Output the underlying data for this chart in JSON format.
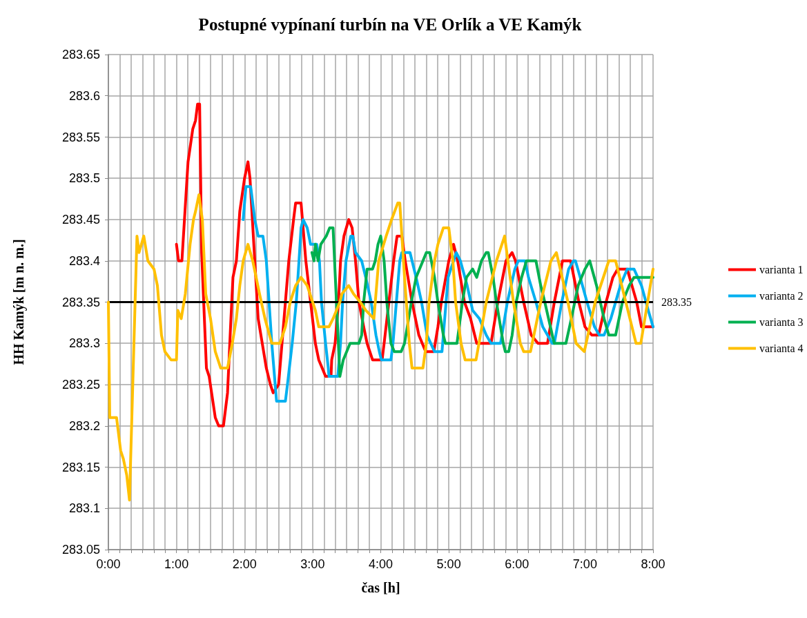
{
  "chart_data": {
    "type": "line",
    "title": "Postupné vypínaní turbín na VE Orlík a VE Kamýk",
    "xlabel": "čas [h]",
    "ylabel": "HH Kamýk [m n. m.]",
    "xlim": [
      0,
      8
    ],
    "ylim": [
      283.05,
      283.65
    ],
    "xticks": [
      {
        "value": 0,
        "label": "0:00"
      },
      {
        "value": 0.1667,
        "label": null
      },
      {
        "value": 0.3333,
        "label": null
      },
      {
        "value": 0.5,
        "label": null
      },
      {
        "value": 0.6667,
        "label": null
      },
      {
        "value": 0.8333,
        "label": null
      },
      {
        "value": 1,
        "label": "1:00"
      },
      {
        "value": 1.1667,
        "label": null
      },
      {
        "value": 1.3333,
        "label": null
      },
      {
        "value": 1.5,
        "label": null
      },
      {
        "value": 1.6667,
        "label": null
      },
      {
        "value": 1.8333,
        "label": null
      },
      {
        "value": 2,
        "label": "2:00"
      },
      {
        "value": 2.1667,
        "label": null
      },
      {
        "value": 2.3333,
        "label": null
      },
      {
        "value": 2.5,
        "label": null
      },
      {
        "value": 2.6667,
        "label": null
      },
      {
        "value": 2.8333,
        "label": null
      },
      {
        "value": 3,
        "label": "3:00"
      },
      {
        "value": 3.1667,
        "label": null
      },
      {
        "value": 3.3333,
        "label": null
      },
      {
        "value": 3.5,
        "label": null
      },
      {
        "value": 3.6667,
        "label": null
      },
      {
        "value": 3.8333,
        "label": null
      },
      {
        "value": 4,
        "label": "4:00"
      },
      {
        "value": 4.1667,
        "label": null
      },
      {
        "value": 4.3333,
        "label": null
      },
      {
        "value": 4.5,
        "label": null
      },
      {
        "value": 4.6667,
        "label": null
      },
      {
        "value": 4.8333,
        "label": null
      },
      {
        "value": 5,
        "label": "5:00"
      },
      {
        "value": 5.1667,
        "label": null
      },
      {
        "value": 5.3333,
        "label": null
      },
      {
        "value": 5.5,
        "label": null
      },
      {
        "value": 5.6667,
        "label": null
      },
      {
        "value": 5.8333,
        "label": null
      },
      {
        "value": 6,
        "label": "6:00"
      },
      {
        "value": 6.1667,
        "label": null
      },
      {
        "value": 6.3333,
        "label": null
      },
      {
        "value": 6.5,
        "label": null
      },
      {
        "value": 6.6667,
        "label": null
      },
      {
        "value": 6.8333,
        "label": null
      },
      {
        "value": 7,
        "label": "7:00"
      },
      {
        "value": 7.1667,
        "label": null
      },
      {
        "value": 7.3333,
        "label": null
      },
      {
        "value": 7.5,
        "label": null
      },
      {
        "value": 7.6667,
        "label": null
      },
      {
        "value": 7.8333,
        "label": null
      },
      {
        "value": 8,
        "label": "8:00"
      }
    ],
    "yticks": [
      283.05,
      283.1,
      283.15,
      283.2,
      283.25,
      283.3,
      283.35,
      283.4,
      283.45,
      283.5,
      283.55,
      283.6,
      283.65
    ],
    "grid": true,
    "legend": "right",
    "marker": "none",
    "line_style": "solid",
    "ref_lines": [
      {
        "axis": "y",
        "value": 283.35,
        "label": "283.35",
        "color": "#000000"
      }
    ],
    "series": [
      {
        "name": "varianta 1",
        "color": "#ff0000",
        "x": [
          1.0,
          1.03,
          1.08,
          1.17,
          1.24,
          1.28,
          1.31,
          1.34,
          1.37,
          1.44,
          1.48,
          1.57,
          1.62,
          1.69,
          1.75,
          1.8,
          1.83,
          1.88,
          1.93,
          2.0,
          2.05,
          2.08,
          2.15,
          2.2,
          2.32,
          2.38,
          2.42,
          2.5,
          2.55,
          2.6,
          2.65,
          2.72,
          2.75,
          2.83,
          2.9,
          2.97,
          3.04,
          3.09,
          3.14,
          3.19,
          3.27,
          3.28,
          3.33,
          3.38,
          3.41,
          3.46,
          3.53,
          3.58,
          3.63,
          3.68,
          3.75,
          3.8,
          3.88,
          4.02,
          4.05,
          4.12,
          4.19,
          4.24,
          4.31,
          4.36,
          4.46,
          4.56,
          4.66,
          4.78,
          4.84,
          4.89,
          5.0,
          5.07,
          5.13,
          5.23,
          5.32,
          5.41,
          5.62,
          5.72,
          5.84,
          5.93,
          5.98,
          6.1,
          6.21,
          6.31,
          6.45,
          6.55,
          6.67,
          6.79,
          6.91,
          7.0,
          7.1,
          7.2,
          7.31,
          7.41,
          7.48,
          7.62,
          7.76,
          7.83,
          8.0
        ],
        "values": [
          283.42,
          283.4,
          283.4,
          283.52,
          283.56,
          283.57,
          283.59,
          283.59,
          283.41,
          283.27,
          283.26,
          283.21,
          283.2,
          283.2,
          283.24,
          283.33,
          283.38,
          283.4,
          283.46,
          283.5,
          283.52,
          283.5,
          283.4,
          283.33,
          283.27,
          283.25,
          283.24,
          283.25,
          283.3,
          283.35,
          283.4,
          283.45,
          283.47,
          283.47,
          283.4,
          283.35,
          283.3,
          283.28,
          283.27,
          283.26,
          283.26,
          283.28,
          283.3,
          283.35,
          283.4,
          283.43,
          283.45,
          283.44,
          283.4,
          283.35,
          283.32,
          283.3,
          283.28,
          283.28,
          283.3,
          283.35,
          283.4,
          283.43,
          283.43,
          283.4,
          283.35,
          283.31,
          283.29,
          283.29,
          283.32,
          283.35,
          283.4,
          283.42,
          283.4,
          283.35,
          283.33,
          283.3,
          283.3,
          283.35,
          283.4,
          283.41,
          283.4,
          283.35,
          283.31,
          283.3,
          283.3,
          283.35,
          283.4,
          283.4,
          283.35,
          283.32,
          283.31,
          283.31,
          283.35,
          283.38,
          283.39,
          283.39,
          283.35,
          283.32,
          283.32
        ]
      },
      {
        "name": "varianta 2",
        "color": "#00b0f0",
        "x": [
          1.98,
          2.02,
          2.09,
          2.12,
          2.15,
          2.2,
          2.27,
          2.32,
          2.36,
          2.4,
          2.45,
          2.47,
          2.6,
          2.63,
          2.7,
          2.76,
          2.8,
          2.83,
          2.86,
          2.92,
          2.97,
          3.06,
          3.1,
          3.13,
          3.19,
          3.23,
          3.24,
          3.37,
          3.41,
          3.44,
          3.49,
          3.56,
          3.59,
          3.63,
          3.72,
          3.78,
          3.86,
          3.93,
          3.98,
          4.01,
          4.15,
          4.18,
          4.23,
          4.28,
          4.31,
          4.43,
          4.52,
          4.6,
          4.68,
          4.79,
          4.9,
          4.94,
          4.99,
          5.07,
          5.11,
          5.17,
          5.27,
          5.35,
          5.45,
          5.55,
          5.62,
          5.76,
          5.86,
          5.97,
          6.02,
          6.12,
          6.17,
          6.28,
          6.38,
          6.52,
          6.55,
          6.66,
          6.76,
          6.83,
          6.86,
          6.93,
          7.03,
          7.14,
          7.21,
          7.28,
          7.38,
          7.52,
          7.62,
          7.72,
          7.83,
          7.93,
          8.0
        ],
        "values": [
          283.45,
          283.49,
          283.49,
          283.47,
          283.45,
          283.43,
          283.43,
          283.4,
          283.35,
          283.3,
          283.25,
          283.23,
          283.23,
          283.25,
          283.3,
          283.35,
          283.4,
          283.44,
          283.45,
          283.44,
          283.42,
          283.42,
          283.4,
          283.35,
          283.3,
          283.27,
          283.26,
          283.26,
          283.3,
          283.35,
          283.4,
          283.43,
          283.43,
          283.41,
          283.4,
          283.38,
          283.35,
          283.31,
          283.29,
          283.28,
          283.28,
          283.3,
          283.35,
          283.4,
          283.41,
          283.41,
          283.38,
          283.35,
          283.31,
          283.29,
          283.29,
          283.33,
          283.38,
          283.4,
          283.41,
          283.4,
          283.37,
          283.34,
          283.33,
          283.31,
          283.3,
          283.3,
          283.35,
          283.39,
          283.4,
          283.4,
          283.38,
          283.35,
          283.32,
          283.3,
          283.3,
          283.35,
          283.39,
          283.4,
          283.4,
          283.38,
          283.35,
          283.32,
          283.31,
          283.31,
          283.33,
          283.37,
          283.39,
          283.39,
          283.37,
          283.34,
          283.32
        ]
      },
      {
        "name": "varianta 3",
        "color": "#00b050",
        "x": [
          2.99,
          3.02,
          3.04,
          3.08,
          3.12,
          3.2,
          3.25,
          3.3,
          3.35,
          3.4,
          3.45,
          3.5,
          3.55,
          3.68,
          3.72,
          3.75,
          3.8,
          3.88,
          3.92,
          3.96,
          4.0,
          4.05,
          4.09,
          4.15,
          4.2,
          4.3,
          4.35,
          4.45,
          4.52,
          4.62,
          4.67,
          4.72,
          4.79,
          4.84,
          4.92,
          4.95,
          5.12,
          5.2,
          5.26,
          5.35,
          5.41,
          5.48,
          5.55,
          5.58,
          5.65,
          5.7,
          5.8,
          5.83,
          5.88,
          5.93,
          5.99,
          6.07,
          6.14,
          6.28,
          6.35,
          6.41,
          6.52,
          6.55,
          6.72,
          6.8,
          6.9,
          7.0,
          7.07,
          7.17,
          7.28,
          7.35,
          7.45,
          7.55,
          7.65,
          7.72,
          8.0
        ],
        "values": [
          283.41,
          283.4,
          283.42,
          283.4,
          283.42,
          283.43,
          283.44,
          283.44,
          283.35,
          283.26,
          283.28,
          283.29,
          283.3,
          283.3,
          283.31,
          283.35,
          283.39,
          283.39,
          283.4,
          283.42,
          283.43,
          283.4,
          283.35,
          283.3,
          283.29,
          283.29,
          283.3,
          283.35,
          283.38,
          283.4,
          283.41,
          283.41,
          283.38,
          283.35,
          283.31,
          283.3,
          283.3,
          283.35,
          283.38,
          283.39,
          283.38,
          283.4,
          283.41,
          283.41,
          283.38,
          283.35,
          283.3,
          283.29,
          283.29,
          283.31,
          283.35,
          283.38,
          283.4,
          283.4,
          283.37,
          283.35,
          283.31,
          283.3,
          283.3,
          283.33,
          283.37,
          283.39,
          283.4,
          283.37,
          283.33,
          283.31,
          283.31,
          283.35,
          283.37,
          283.38,
          283.38
        ]
      },
      {
        "name": "varianta 4",
        "color": "#ffc000",
        "x": [
          0,
          0.02,
          0.12,
          0.18,
          0.22,
          0.27,
          0.31,
          0.42,
          0.45,
          0.52,
          0.58,
          0.67,
          0.72,
          0.78,
          0.83,
          0.92,
          1.0,
          1.02,
          1.07,
          1.13,
          1.2,
          1.25,
          1.28,
          1.33,
          1.38,
          1.43,
          1.5,
          1.57,
          1.65,
          1.75,
          1.82,
          1.88,
          1.93,
          1.98,
          2.05,
          2.12,
          2.22,
          2.3,
          2.4,
          2.52,
          2.6,
          2.67,
          2.75,
          2.83,
          2.92,
          3.04,
          3.09,
          3.24,
          3.3,
          3.4,
          3.43,
          3.53,
          3.6,
          3.7,
          3.78,
          3.9,
          3.97,
          4.08,
          4.16,
          4.25,
          4.28,
          4.35,
          4.42,
          4.46,
          4.62,
          4.67,
          4.71,
          4.79,
          4.84,
          4.92,
          5.0,
          5.06,
          5.1,
          5.18,
          5.24,
          5.4,
          5.55,
          5.7,
          5.82,
          5.95,
          6.05,
          6.1,
          6.2,
          6.35,
          6.5,
          6.58,
          6.75,
          6.87,
          6.99,
          7.15,
          7.35,
          7.45,
          7.6,
          7.75,
          7.82,
          7.92,
          8.0
        ],
        "values": [
          283.35,
          283.21,
          283.21,
          283.17,
          283.16,
          283.14,
          283.11,
          283.43,
          283.41,
          283.43,
          283.4,
          283.39,
          283.37,
          283.31,
          283.29,
          283.28,
          283.28,
          283.34,
          283.33,
          283.36,
          283.42,
          283.45,
          283.46,
          283.48,
          283.45,
          283.36,
          283.33,
          283.29,
          283.27,
          283.27,
          283.3,
          283.33,
          283.37,
          283.4,
          283.42,
          283.4,
          283.36,
          283.33,
          283.3,
          283.3,
          283.32,
          283.35,
          283.37,
          283.38,
          283.37,
          283.34,
          283.32,
          283.32,
          283.33,
          283.35,
          283.36,
          283.37,
          283.36,
          283.35,
          283.34,
          283.33,
          283.4,
          283.43,
          283.45,
          283.47,
          283.47,
          283.38,
          283.3,
          283.27,
          283.27,
          283.3,
          283.35,
          283.4,
          283.42,
          283.44,
          283.44,
          283.4,
          283.35,
          283.3,
          283.28,
          283.28,
          283.35,
          283.4,
          283.43,
          283.35,
          283.3,
          283.29,
          283.29,
          283.35,
          283.4,
          283.41,
          283.35,
          283.3,
          283.29,
          283.35,
          283.4,
          283.4,
          283.35,
          283.3,
          283.3,
          283.35,
          283.39
        ]
      }
    ]
  }
}
